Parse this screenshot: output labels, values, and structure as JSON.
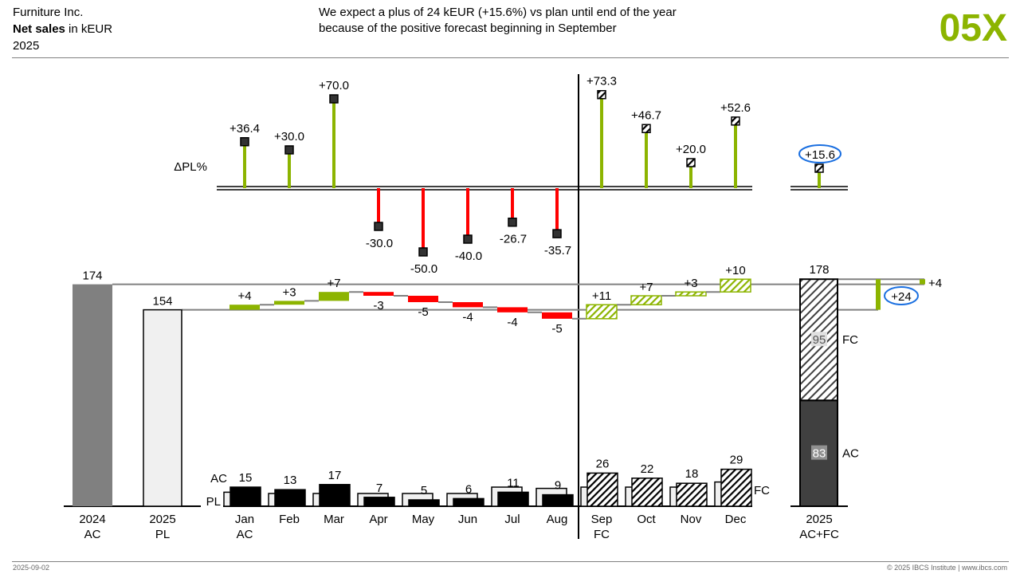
{
  "header": {
    "company": "Furniture Inc.",
    "measure_bold": "Net sales",
    "measure_unit": " in kEUR",
    "year": "2025",
    "message_line1": "We expect a plus of 24 kEUR (+15.6%) vs plan until end of the year",
    "message_line2": "because of the positive forecast beginning in September",
    "chart_id": "05X"
  },
  "footer": {
    "date": "2025-09-02",
    "copyright": "© 2025 IBCS Institute | www.ibcs.com"
  },
  "colors": {
    "positive": "#8cb400",
    "negative": "#ff0000",
    "ac": "#000000",
    "py": "#808080",
    "pl": "#f0f0f0",
    "highlight": "#1a6fe0"
  },
  "chart_data": {
    "type": "bar",
    "months": [
      "Jan",
      "Feb",
      "Mar",
      "Apr",
      "May",
      "Jun",
      "Jul",
      "Aug",
      "Sep",
      "Oct",
      "Nov",
      "Dec"
    ],
    "scenario": [
      "AC",
      "AC",
      "AC",
      "AC",
      "AC",
      "AC",
      "AC",
      "AC",
      "FC",
      "FC",
      "FC",
      "FC"
    ],
    "ac_fc": [
      15,
      13,
      17,
      7,
      5,
      6,
      11,
      9,
      26,
      22,
      18,
      29
    ],
    "ac_fc_labels": [
      "15",
      "13",
      "17",
      "7",
      "5",
      "6",
      "11",
      "9",
      "26",
      "22",
      "18",
      "29"
    ],
    "pl": [
      11,
      10,
      10,
      10,
      10,
      10,
      15,
      14,
      15,
      15,
      15,
      19
    ],
    "delta_pl": [
      4,
      3,
      7,
      -3,
      -5,
      -4,
      -4,
      -5,
      11,
      7,
      3,
      10
    ],
    "delta_pl_labels": [
      "+4",
      "+3",
      "+7",
      "-3",
      "-5",
      "-4",
      "-4",
      "-5",
      "+11",
      "+7",
      "+3",
      "+10"
    ],
    "delta_pl_pct": [
      36.4,
      30.0,
      70.0,
      -30.0,
      -50.0,
      -40.0,
      -26.7,
      -35.7,
      73.3,
      46.7,
      20.0,
      52.6
    ],
    "delta_pl_pct_labels": [
      "+36.4",
      "+30.0",
      "+70.0",
      "-30.0",
      "-50.0",
      "-40.0",
      "-26.7",
      "-35.7",
      "+73.3",
      "+46.7",
      "+20.0",
      "+52.6"
    ],
    "delta_pct_axis_label": "ΔPL%",
    "total_delta_pct": 15.6,
    "total_delta_pct_label": "+15.6",
    "row_labels": {
      "ac": "AC",
      "pl": "PL",
      "fc": "FC"
    },
    "month_sub_labels": {
      "jan": "AC",
      "sep": "FC"
    },
    "py_total": {
      "value": 174,
      "label": "174",
      "cat1": "2024",
      "cat2": "AC"
    },
    "pl_total": {
      "value": 154,
      "label": "154",
      "cat1": "2025",
      "cat2": "PL"
    },
    "year_total": {
      "value": 178,
      "label": "178",
      "ac": 83,
      "ac_label": "83",
      "fc": 95,
      "fc_label": "95",
      "cat1": "2025",
      "cat2": "AC+FC",
      "ac_tag": "AC",
      "fc_tag": "FC"
    },
    "delta_vs_pl": {
      "value": 24,
      "label": "+24"
    },
    "delta_vs_py": {
      "value": 4,
      "label": "+4"
    }
  }
}
